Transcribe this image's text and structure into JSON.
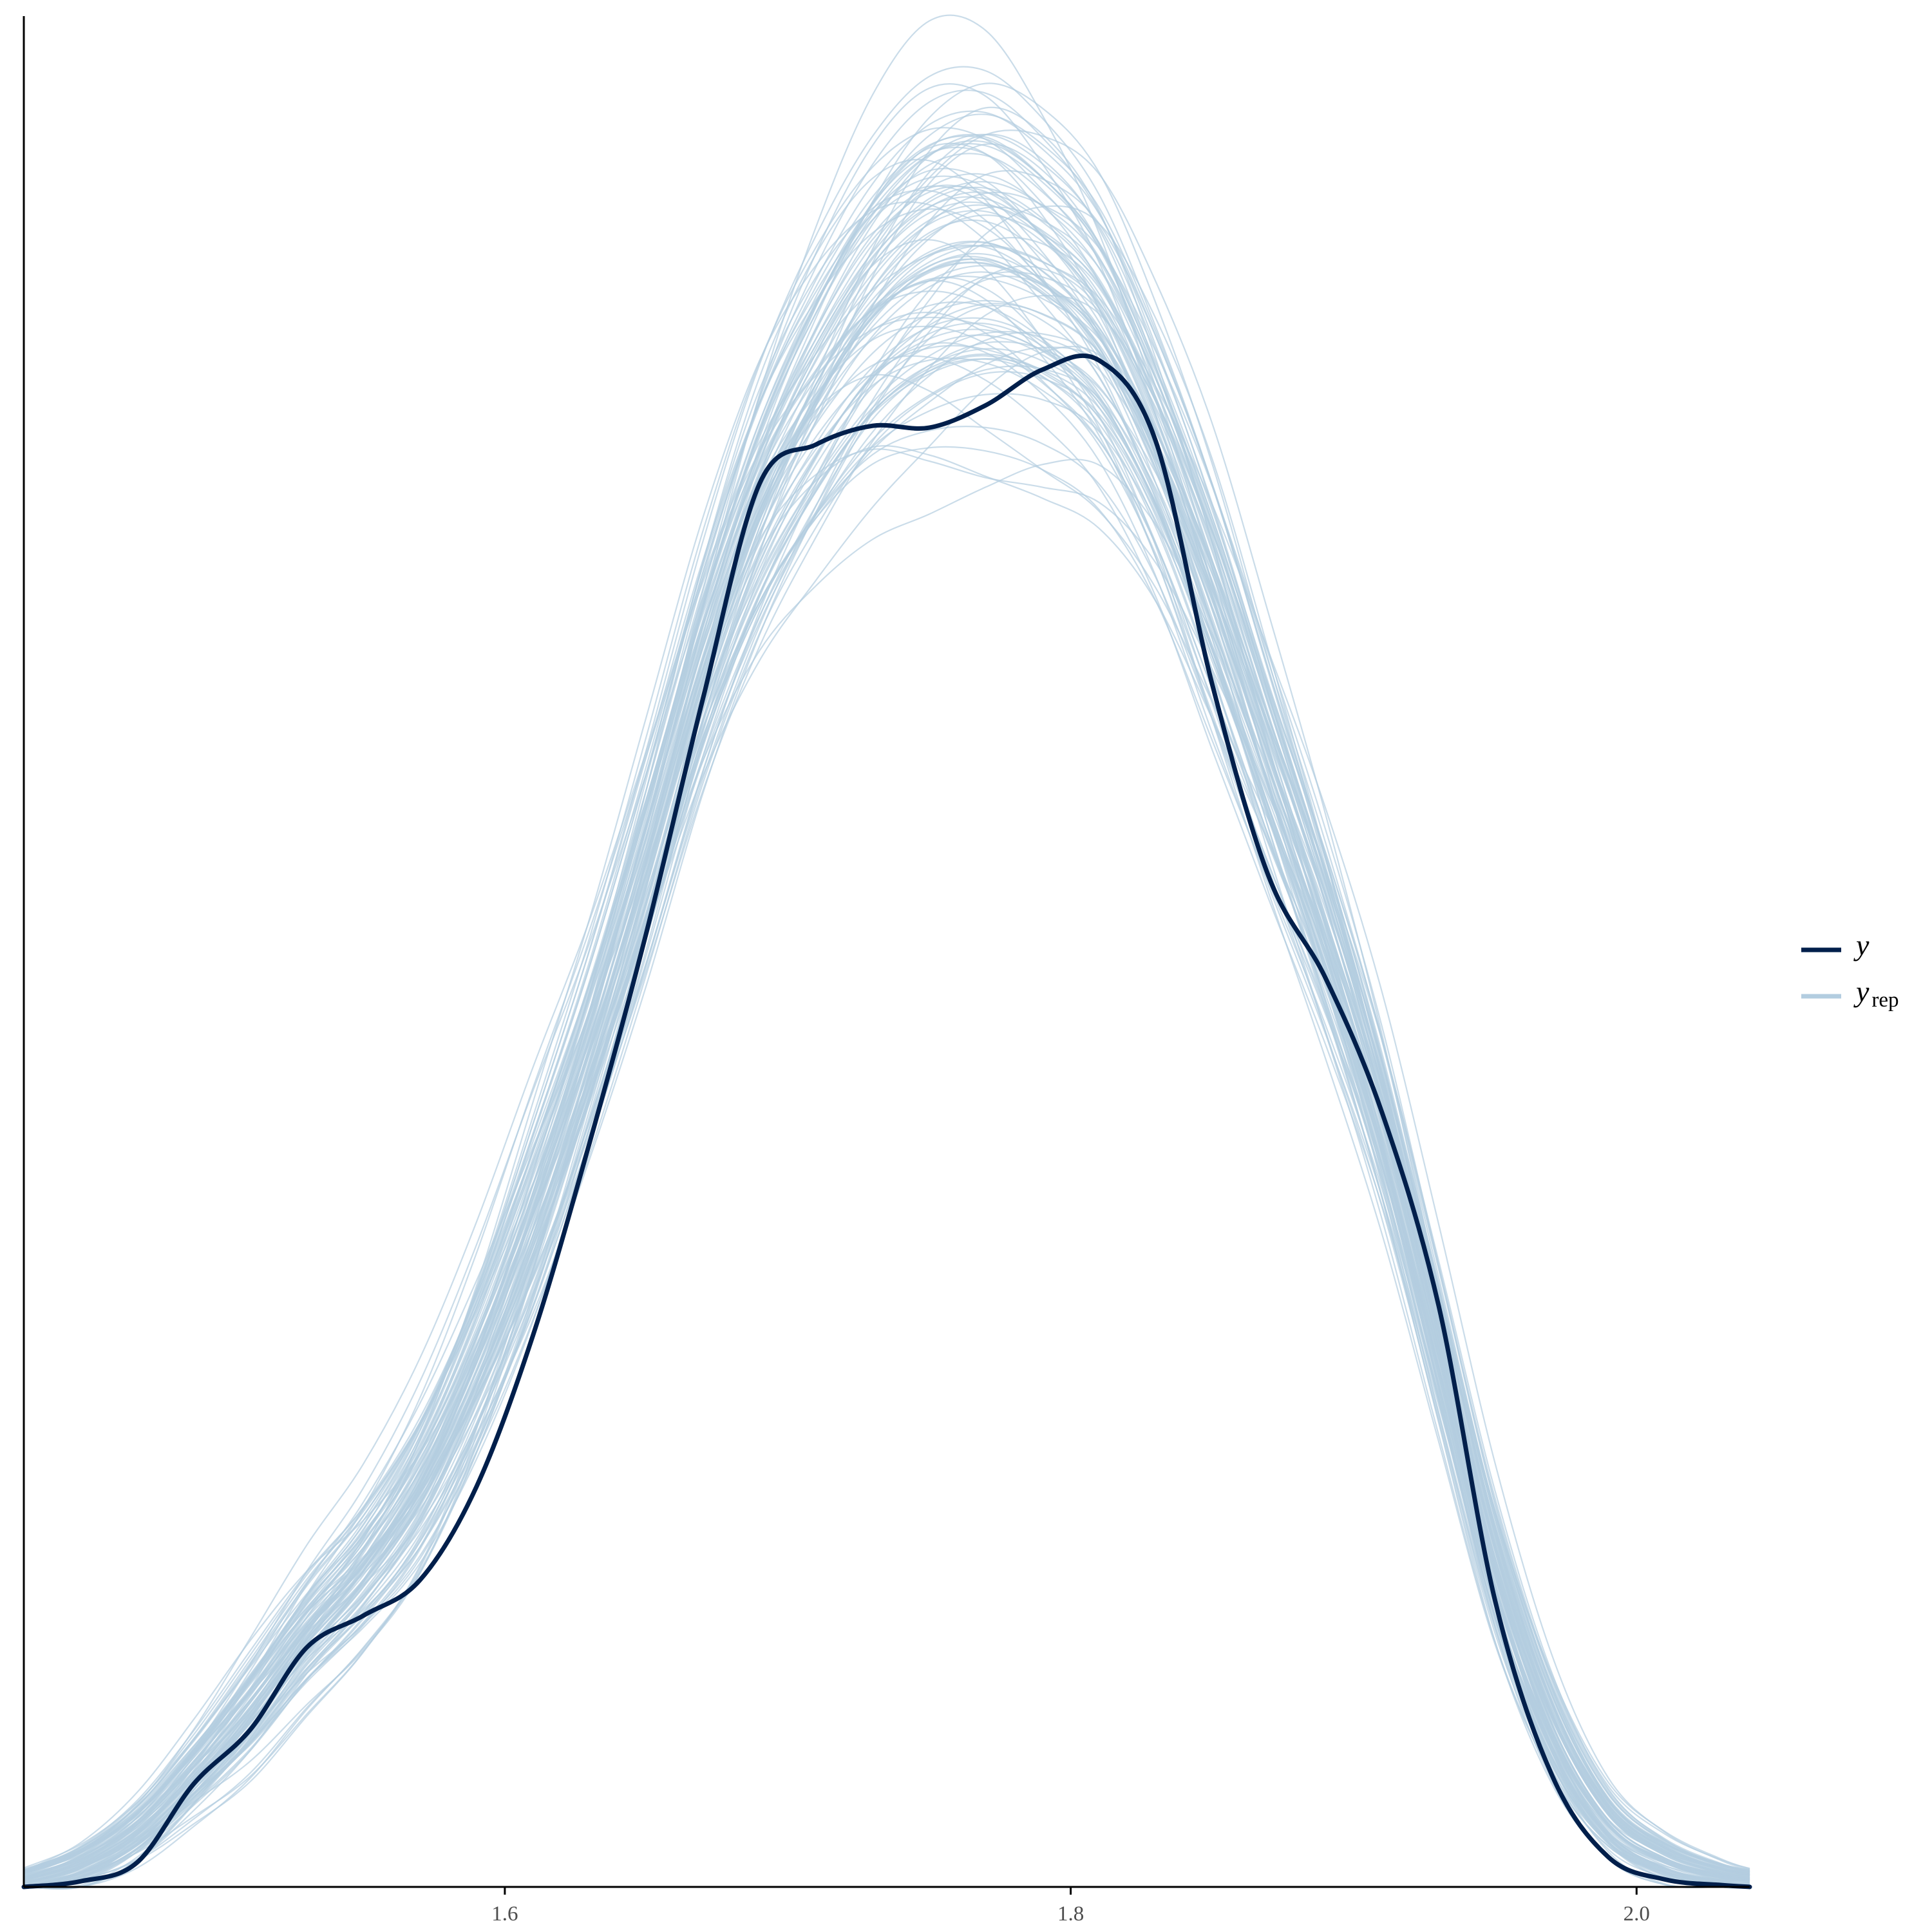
{
  "chart_data": {
    "type": "line",
    "title": "",
    "xlabel": "",
    "ylabel": "",
    "xlim": [
      1.43,
      2.04
    ],
    "ylim": [
      0,
      1
    ],
    "x_ticks": [
      {
        "value": 1.6,
        "label": "1.6"
      },
      {
        "value": 1.8,
        "label": "1.8"
      },
      {
        "value": 2.0,
        "label": "2.0"
      }
    ],
    "y_axis_tick_labels": "none",
    "grid": false,
    "legend": {
      "placement": "right",
      "entries": [
        {
          "label": "y",
          "subscript": "",
          "color": "#011f4b",
          "role": "observed"
        },
        {
          "label": "y",
          "subscript": "rep",
          "color": "#b3cde0",
          "role": "replicated"
        }
      ]
    },
    "replicate_count": 100,
    "observed_density": {
      "name": "y",
      "color": "#011f4b",
      "x": [
        1.43,
        1.45,
        1.47,
        1.49,
        1.51,
        1.53,
        1.55,
        1.57,
        1.59,
        1.61,
        1.63,
        1.65,
        1.67,
        1.69,
        1.71,
        1.73,
        1.75,
        1.77,
        1.79,
        1.81,
        1.83,
        1.85,
        1.87,
        1.89,
        1.91,
        1.93,
        1.95,
        1.97,
        1.99,
        2.01,
        2.03,
        2.04
      ],
      "y": [
        0.0,
        0.003,
        0.013,
        0.055,
        0.084,
        0.128,
        0.145,
        0.164,
        0.214,
        0.295,
        0.398,
        0.51,
        0.635,
        0.75,
        0.771,
        0.781,
        0.78,
        0.792,
        0.811,
        0.816,
        0.773,
        0.643,
        0.54,
        0.486,
        0.414,
        0.311,
        0.153,
        0.06,
        0.016,
        0.004,
        0.001,
        0.0
      ]
    },
    "replicate_band": {
      "color": "#b3cde0",
      "x": [
        1.43,
        1.45,
        1.47,
        1.49,
        1.51,
        1.53,
        1.55,
        1.57,
        1.59,
        1.61,
        1.63,
        1.65,
        1.67,
        1.69,
        1.71,
        1.73,
        1.75,
        1.77,
        1.79,
        1.81,
        1.83,
        1.85,
        1.87,
        1.89,
        1.91,
        1.93,
        1.95,
        1.97,
        1.99,
        2.01,
        2.03,
        2.04
      ],
      "y_center": [
        0.003,
        0.012,
        0.03,
        0.06,
        0.095,
        0.135,
        0.17,
        0.215,
        0.28,
        0.36,
        0.45,
        0.55,
        0.655,
        0.74,
        0.8,
        0.845,
        0.87,
        0.875,
        0.86,
        0.83,
        0.77,
        0.69,
        0.6,
        0.51,
        0.41,
        0.29,
        0.17,
        0.085,
        0.035,
        0.015,
        0.006,
        0.004
      ],
      "y_spread": [
        0.01,
        0.015,
        0.022,
        0.03,
        0.04,
        0.045,
        0.05,
        0.06,
        0.07,
        0.08,
        0.08,
        0.085,
        0.09,
        0.1,
        0.11,
        0.12,
        0.13,
        0.13,
        0.12,
        0.11,
        0.1,
        0.1,
        0.09,
        0.08,
        0.07,
        0.06,
        0.05,
        0.035,
        0.022,
        0.015,
        0.01,
        0.008
      ]
    }
  }
}
